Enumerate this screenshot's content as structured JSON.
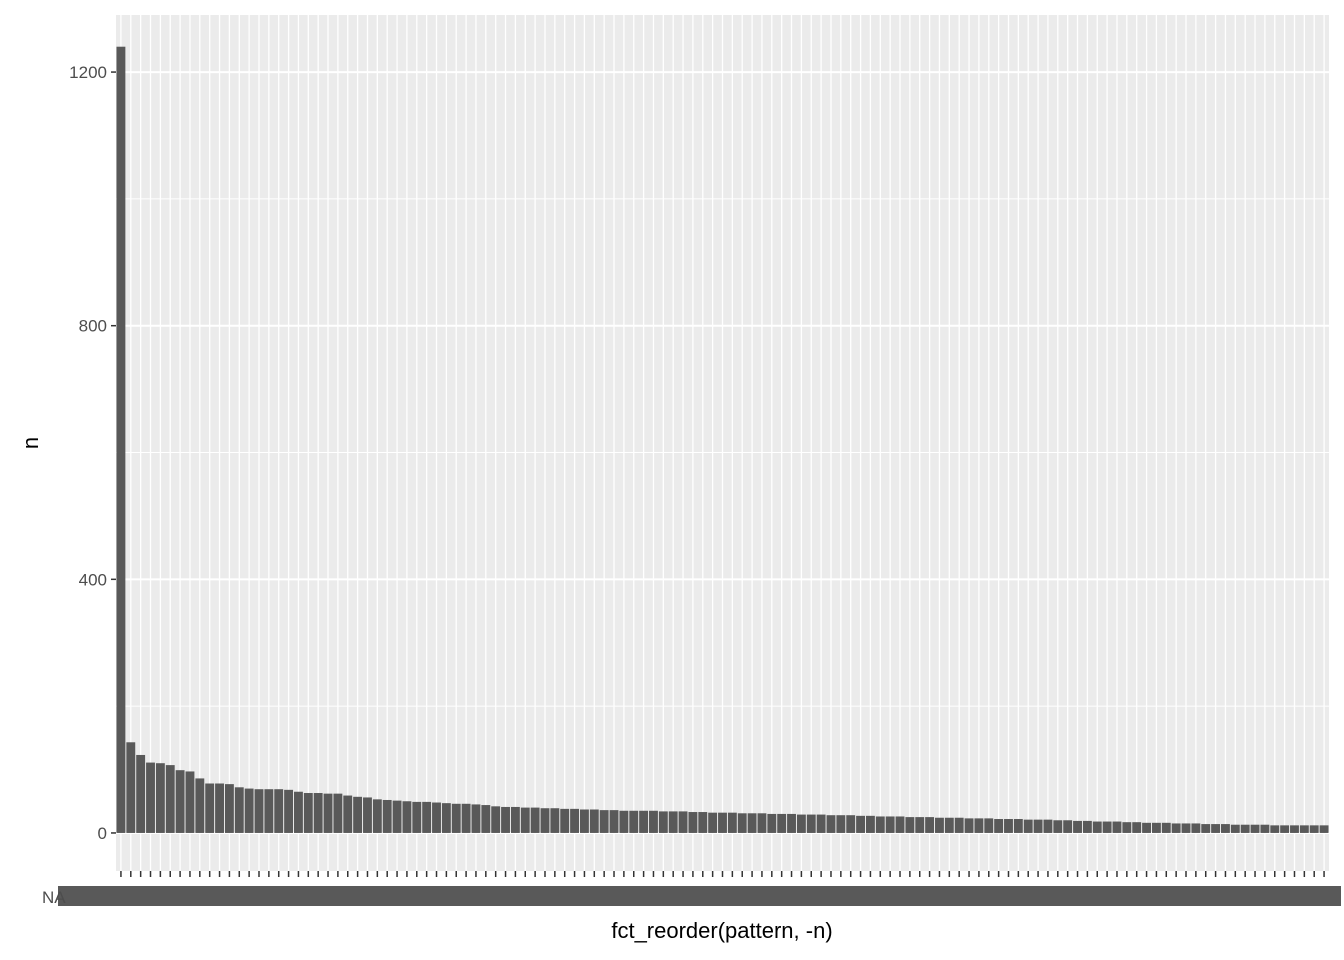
{
  "chart_data": {
    "type": "bar",
    "title": "",
    "xlabel": "fct_reorder(pattern, -n)",
    "ylabel": "n",
    "ylim": [
      -60,
      1290
    ],
    "yticks": [
      0,
      400,
      800,
      1200
    ],
    "grid": true,
    "legend": "none",
    "colors": {
      "bar": "#595959",
      "panel": "#ebebeb",
      "grid": "#ffffff",
      "tick_text": "#4d4d4d"
    },
    "first_category_label": "NA",
    "values": [
      1240,
      143,
      123,
      111,
      110,
      107,
      99,
      97,
      86,
      78,
      78,
      77,
      72,
      70,
      69,
      69,
      69,
      68,
      65,
      63,
      63,
      62,
      62,
      59,
      57,
      56,
      53,
      52,
      51,
      50,
      49,
      49,
      48,
      47,
      46,
      46,
      45,
      44,
      42,
      41,
      41,
      40,
      40,
      39,
      39,
      38,
      38,
      37,
      37,
      36,
      36,
      35,
      35,
      35,
      35,
      34,
      34,
      34,
      33,
      33,
      32,
      32,
      32,
      31,
      31,
      31,
      30,
      30,
      30,
      29,
      29,
      29,
      28,
      28,
      28,
      27,
      27,
      26,
      26,
      26,
      25,
      25,
      25,
      24,
      24,
      24,
      23,
      23,
      23,
      22,
      22,
      22,
      21,
      21,
      21,
      20,
      20,
      19,
      19,
      18,
      18,
      18,
      17,
      17,
      16,
      16,
      16,
      15,
      15,
      15,
      14,
      14,
      14,
      13,
      13,
      13,
      13,
      12,
      12,
      12,
      12,
      12,
      12
    ]
  }
}
